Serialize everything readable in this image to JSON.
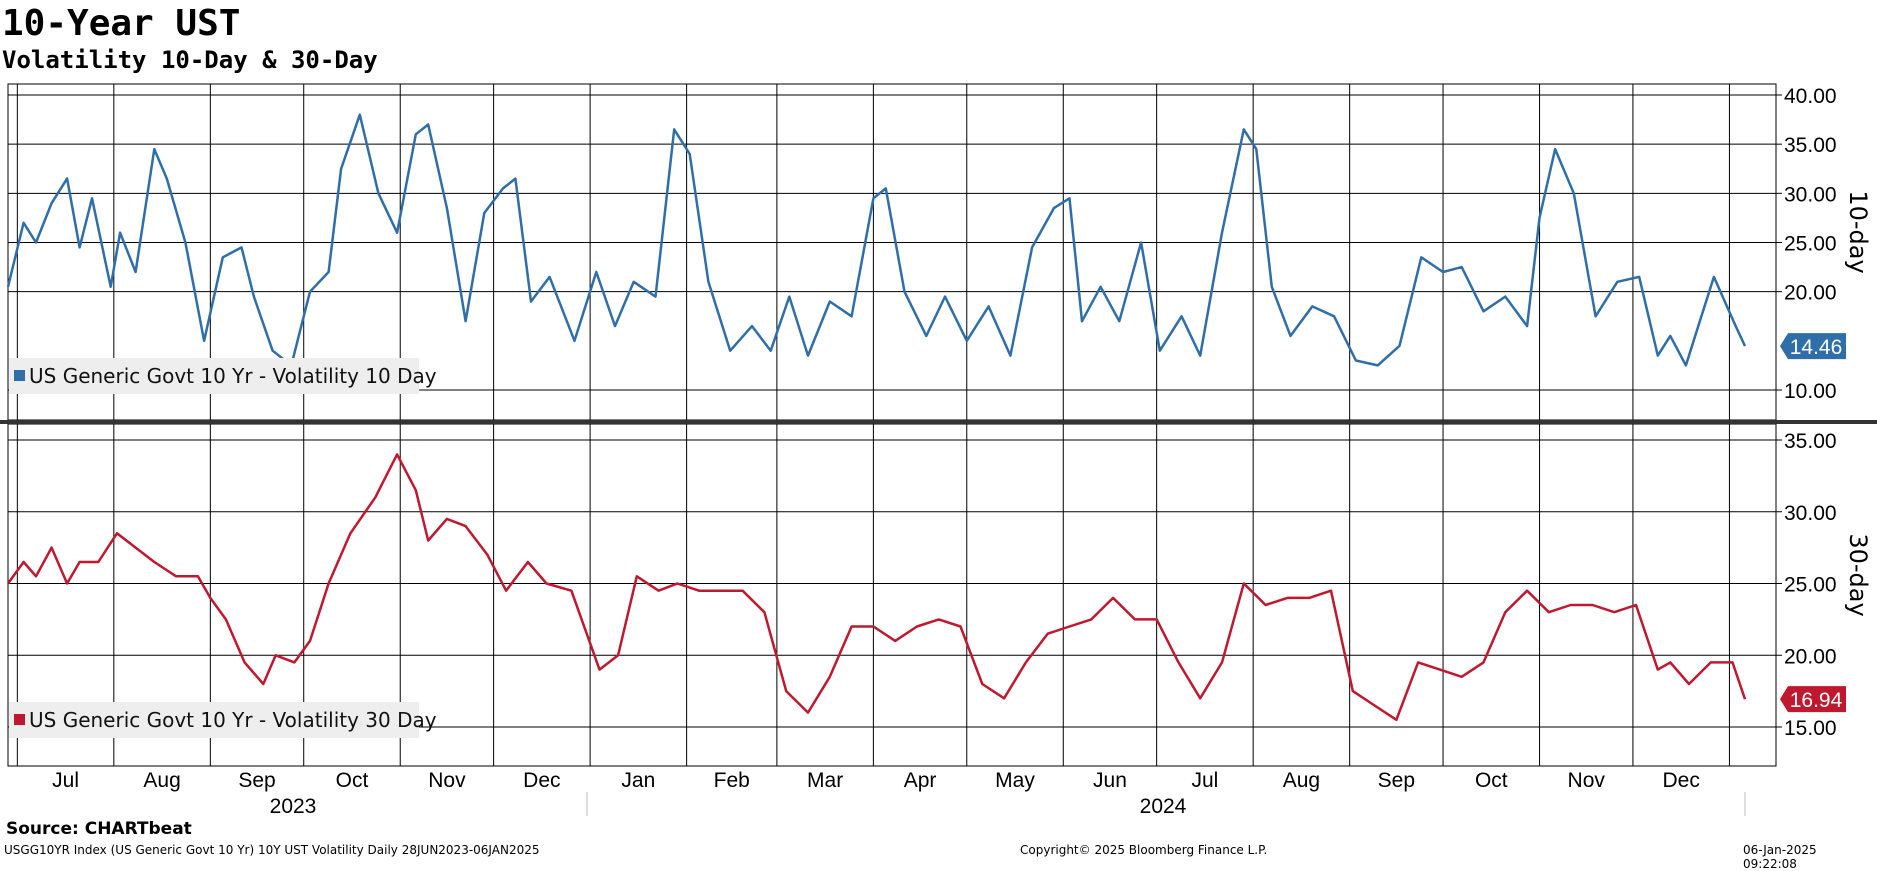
{
  "title": "10-Year UST",
  "subtitle": "Volatility 10-Day & 30-Day",
  "source": "Source: CHARTbeat",
  "footer": {
    "left": "USGG10YR Index (US Generic Govt 10 Yr) 10Y UST Volatility  Daily 28JUN2023-06JAN2025",
    "center": "Copyright© 2025 Bloomberg Finance L.P.",
    "right": "06-Jan-2025 09:22:08"
  },
  "colors": {
    "series_10d": "#2f6ea8",
    "series_30d": "#c0182f",
    "grid": "#000000"
  },
  "chart_data": [
    {
      "type": "line",
      "ylabel": "10-day",
      "ylim": [
        7,
        41
      ],
      "yticks": [
        "40.00",
        "35.00",
        "30.00",
        "25.00",
        "20.00",
        "10.00"
      ],
      "ytick_values": [
        40,
        35,
        30,
        25,
        20,
        10
      ],
      "x_months": [
        "Jul",
        "Aug",
        "Sep",
        "Oct",
        "Nov",
        "Dec",
        "Jan",
        "Feb",
        "Mar",
        "Apr",
        "May",
        "Jun",
        "Jul",
        "Aug",
        "Sep",
        "Oct",
        "Nov",
        "Dec"
      ],
      "x_years": [
        "2023",
        "2024"
      ],
      "grid": true,
      "legend_position": "bottom-left",
      "last_value_label": "14.46",
      "series": [
        {
          "name": "US Generic Govt 10 Yr - Volatility 10 Day",
          "x": [
            "2023-06-28",
            "2023-07-03",
            "2023-07-07",
            "2023-07-12",
            "2023-07-17",
            "2023-07-21",
            "2023-07-25",
            "2023-07-31",
            "2023-08-03",
            "2023-08-08",
            "2023-08-14",
            "2023-08-18",
            "2023-08-24",
            "2023-08-30",
            "2023-09-05",
            "2023-09-11",
            "2023-09-15",
            "2023-09-21",
            "2023-09-27",
            "2023-10-03",
            "2023-10-09",
            "2023-10-13",
            "2023-10-19",
            "2023-10-25",
            "2023-10-31",
            "2023-11-06",
            "2023-11-10",
            "2023-11-16",
            "2023-11-22",
            "2023-11-28",
            "2023-12-04",
            "2023-12-08",
            "2023-12-13",
            "2023-12-19",
            "2023-12-27",
            "2024-01-03",
            "2024-01-09",
            "2024-01-15",
            "2024-01-22",
            "2024-01-28",
            "2024-02-02",
            "2024-02-08",
            "2024-02-15",
            "2024-02-22",
            "2024-02-28",
            "2024-03-05",
            "2024-03-11",
            "2024-03-18",
            "2024-03-25",
            "2024-04-01",
            "2024-04-05",
            "2024-04-11",
            "2024-04-18",
            "2024-04-24",
            "2024-05-01",
            "2024-05-08",
            "2024-05-15",
            "2024-05-22",
            "2024-05-29",
            "2024-06-03",
            "2024-06-07",
            "2024-06-13",
            "2024-06-19",
            "2024-06-26",
            "2024-07-02",
            "2024-07-09",
            "2024-07-15",
            "2024-07-22",
            "2024-07-29",
            "2024-08-02",
            "2024-08-07",
            "2024-08-13",
            "2024-08-20",
            "2024-08-27",
            "2024-09-03",
            "2024-09-10",
            "2024-09-17",
            "2024-09-24",
            "2024-10-01",
            "2024-10-07",
            "2024-10-14",
            "2024-10-21",
            "2024-10-28",
            "2024-11-01",
            "2024-11-06",
            "2024-11-12",
            "2024-11-19",
            "2024-11-26",
            "2024-12-03",
            "2024-12-09",
            "2024-12-13",
            "2024-12-18",
            "2024-12-23",
            "2024-12-27",
            "2025-01-03",
            "2025-01-06"
          ],
          "values": [
            20.5,
            27.0,
            25.0,
            29.0,
            31.5,
            24.5,
            29.5,
            20.5,
            26.0,
            22.0,
            34.5,
            31.5,
            25.0,
            15.0,
            23.5,
            24.5,
            19.5,
            14.0,
            12.5,
            20.0,
            22.0,
            32.5,
            38.0,
            30.0,
            26.0,
            36.0,
            37.0,
            28.5,
            17.0,
            28.0,
            30.5,
            31.5,
            19.0,
            21.5,
            15.0,
            22.0,
            16.5,
            21.0,
            19.5,
            36.5,
            34.0,
            21.0,
            14.0,
            16.5,
            14.0,
            19.5,
            13.5,
            19.0,
            17.5,
            29.5,
            30.5,
            20.0,
            15.5,
            19.5,
            15.0,
            18.5,
            13.5,
            24.5,
            28.5,
            29.5,
            17.0,
            20.5,
            17.0,
            25.0,
            14.0,
            17.5,
            13.5,
            26.0,
            36.5,
            34.5,
            20.5,
            15.5,
            18.5,
            17.5,
            13.0,
            12.5,
            14.5,
            23.5,
            22.0,
            22.5,
            18.0,
            19.5,
            16.5,
            27.5,
            34.5,
            30.0,
            17.5,
            21.0,
            21.5,
            13.5,
            15.5,
            12.5,
            17.5,
            21.5,
            16.5,
            14.46
          ]
        }
      ]
    },
    {
      "type": "line",
      "ylabel": "30-day",
      "ylim": [
        12.5,
        36
      ],
      "yticks": [
        "35.00",
        "30.00",
        "25.00",
        "20.00",
        "15.00"
      ],
      "ytick_values": [
        35,
        30,
        25,
        20,
        15
      ],
      "grid": true,
      "legend_position": "bottom-left",
      "last_value_label": "16.94",
      "series": [
        {
          "name": "US Generic Govt 10 Yr - Volatility 30 Day",
          "x": [
            "2023-06-28",
            "2023-07-03",
            "2023-07-07",
            "2023-07-12",
            "2023-07-17",
            "2023-07-21",
            "2023-07-27",
            "2023-08-02",
            "2023-08-08",
            "2023-08-14",
            "2023-08-21",
            "2023-08-28",
            "2023-09-01",
            "2023-09-06",
            "2023-09-12",
            "2023-09-18",
            "2023-09-22",
            "2023-09-28",
            "2023-10-03",
            "2023-10-09",
            "2023-10-16",
            "2023-10-24",
            "2023-10-31",
            "2023-11-06",
            "2023-11-10",
            "2023-11-16",
            "2023-11-22",
            "2023-11-29",
            "2023-12-05",
            "2023-12-12",
            "2023-12-18",
            "2023-12-26",
            "2024-01-04",
            "2024-01-10",
            "2024-01-16",
            "2024-01-23",
            "2024-01-29",
            "2024-02-05",
            "2024-02-12",
            "2024-02-19",
            "2024-02-26",
            "2024-03-04",
            "2024-03-11",
            "2024-03-18",
            "2024-03-25",
            "2024-04-01",
            "2024-04-08",
            "2024-04-15",
            "2024-04-22",
            "2024-04-29",
            "2024-05-06",
            "2024-05-13",
            "2024-05-20",
            "2024-05-27",
            "2024-06-03",
            "2024-06-10",
            "2024-06-17",
            "2024-06-24",
            "2024-07-01",
            "2024-07-08",
            "2024-07-15",
            "2024-07-22",
            "2024-07-29",
            "2024-08-05",
            "2024-08-12",
            "2024-08-19",
            "2024-08-26",
            "2024-09-02",
            "2024-09-09",
            "2024-09-16",
            "2024-09-23",
            "2024-09-30",
            "2024-10-07",
            "2024-10-14",
            "2024-10-21",
            "2024-10-28",
            "2024-11-04",
            "2024-11-11",
            "2024-11-18",
            "2024-11-25",
            "2024-12-02",
            "2024-12-09",
            "2024-12-13",
            "2024-12-19",
            "2024-12-26",
            "2025-01-02",
            "2025-01-06"
          ],
          "values": [
            25.0,
            26.5,
            25.5,
            27.5,
            25.0,
            26.5,
            26.5,
            28.5,
            27.5,
            26.5,
            25.5,
            25.5,
            24.0,
            22.5,
            19.5,
            18.0,
            20.0,
            19.5,
            21.0,
            25.0,
            28.5,
            31.0,
            34.0,
            31.5,
            28.0,
            29.5,
            29.0,
            27.0,
            24.5,
            26.5,
            25.0,
            24.5,
            19.0,
            20.0,
            25.5,
            24.5,
            25.0,
            24.5,
            24.5,
            24.5,
            23.0,
            17.5,
            16.0,
            18.5,
            22.0,
            22.0,
            21.0,
            22.0,
            22.5,
            22.0,
            18.0,
            17.0,
            19.5,
            21.5,
            22.0,
            22.5,
            24.0,
            22.5,
            22.5,
            19.5,
            17.0,
            19.5,
            25.0,
            23.5,
            24.0,
            24.0,
            24.5,
            17.5,
            16.5,
            15.5,
            19.5,
            19.0,
            18.5,
            19.5,
            23.0,
            24.5,
            23.0,
            23.5,
            23.5,
            23.0,
            23.5,
            19.0,
            19.5,
            18.0,
            19.5,
            19.5,
            16.94
          ]
        }
      ]
    }
  ]
}
